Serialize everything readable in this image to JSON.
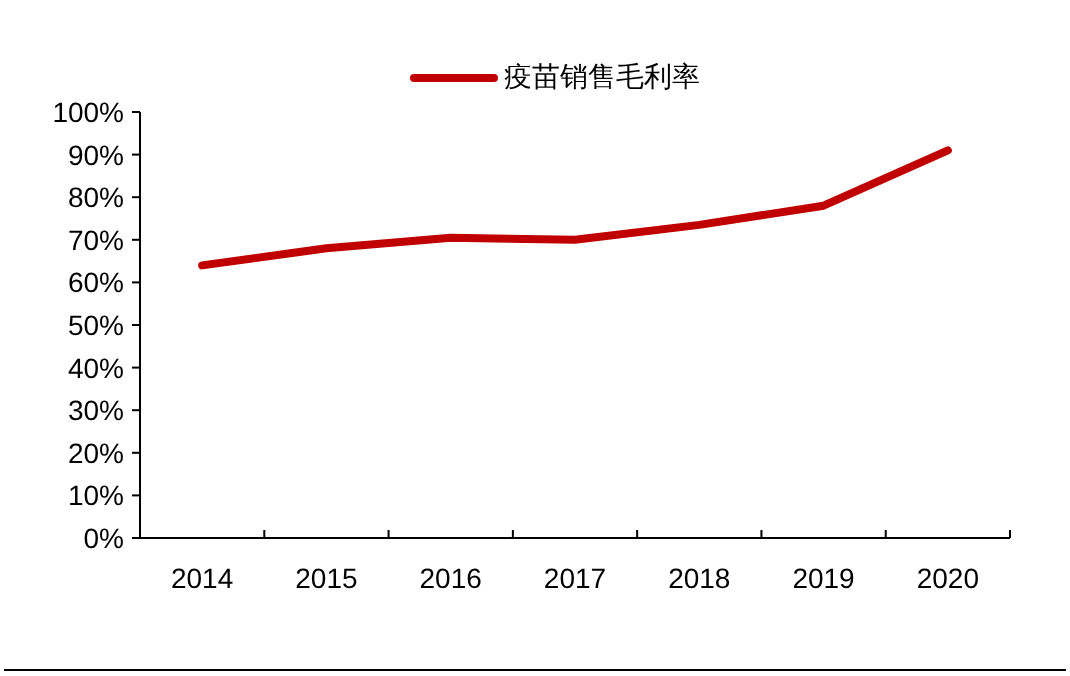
{
  "chart_data": {
    "type": "line",
    "categories": [
      "2014",
      "2015",
      "2016",
      "2017",
      "2018",
      "2019",
      "2020"
    ],
    "series": [
      {
        "name": "疫苗销售毛利率",
        "color": "#c00000",
        "values": [
          64,
          68,
          70.5,
          70,
          73.5,
          78,
          91
        ]
      }
    ],
    "ylim": [
      0,
      100
    ],
    "yticks": [
      {
        "value": 0,
        "label": "0%"
      },
      {
        "value": 10,
        "label": "10%"
      },
      {
        "value": 20,
        "label": "20%"
      },
      {
        "value": 30,
        "label": "30%"
      },
      {
        "value": 40,
        "label": "40%"
      },
      {
        "value": 50,
        "label": "50%"
      },
      {
        "value": 60,
        "label": "60%"
      },
      {
        "value": 70,
        "label": "70%"
      },
      {
        "value": 80,
        "label": "80%"
      },
      {
        "value": 90,
        "label": "90%"
      },
      {
        "value": 100,
        "label": "100%"
      }
    ],
    "grid": false,
    "legend": "top",
    "marker": "none",
    "line_style": "solid"
  }
}
